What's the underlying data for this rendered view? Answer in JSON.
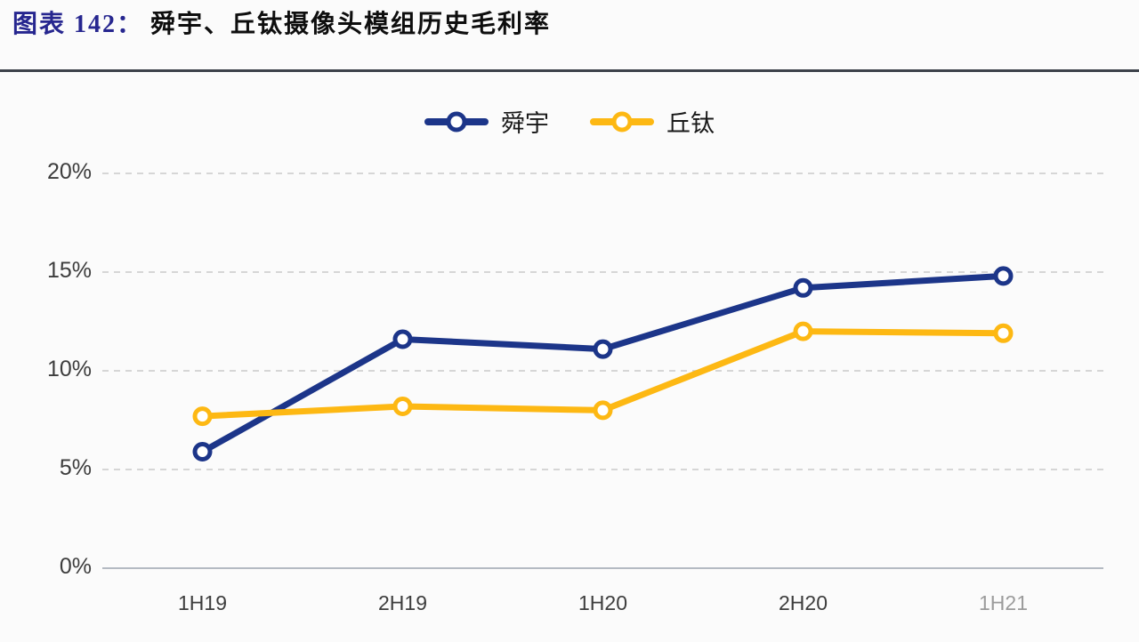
{
  "header": {
    "title_prefix": "图表 142：",
    "title_text": "舜宇、丘钛摄像头模组历史毛利率",
    "prefix_color": "#26268f"
  },
  "chart_data": {
    "type": "line",
    "title": "舜宇、丘钛摄像头模组历史毛利率",
    "categories": [
      "1H19",
      "2H19",
      "1H20",
      "2H20",
      "1H21"
    ],
    "series": [
      {
        "name": "舜宇",
        "slug": "shunyu",
        "color": "#1c3589",
        "values": [
          5.9,
          11.6,
          11.1,
          14.2,
          14.8
        ]
      },
      {
        "name": "丘钛",
        "slug": "qtech",
        "color": "#fdb813",
        "values": [
          7.7,
          8.2,
          8.0,
          12.0,
          11.9
        ]
      }
    ],
    "xlabel": "",
    "ylabel": "",
    "ylim": [
      0,
      20
    ],
    "yticks": [
      0,
      5,
      10,
      15,
      20
    ],
    "ytick_suffix": "%",
    "grid": "dashed-horizontal",
    "legend_position": "top-center",
    "marker": "open-circle",
    "faded_last_xlabel": true
  }
}
